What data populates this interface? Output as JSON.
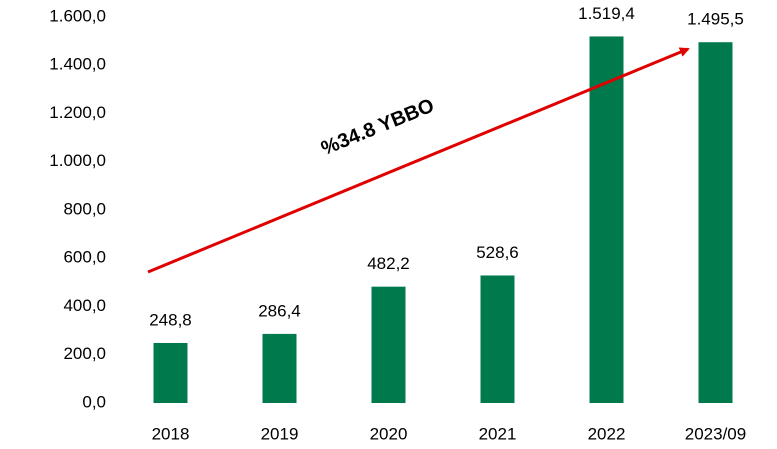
{
  "chart_data": {
    "type": "bar",
    "categories": [
      "2018",
      "2019",
      "2020",
      "2021",
      "2022",
      "2023/09"
    ],
    "values": [
      248.8,
      286.4,
      482.2,
      528.6,
      1519.4,
      1495.5
    ],
    "value_labels": [
      "248,8",
      "286,4",
      "482,2",
      "528,6",
      "1.519,4",
      "1.495,5"
    ],
    "color": "#007a4d",
    "ylim": [
      0,
      1600
    ],
    "yticks": [
      {
        "value": 0,
        "label": "0,0"
      },
      {
        "value": 200,
        "label": "200,0"
      },
      {
        "value": 400,
        "label": "400,0"
      },
      {
        "value": 600,
        "label": "600,0"
      },
      {
        "value": 800,
        "label": "800,0"
      },
      {
        "value": 1000,
        "label": "1.000,0"
      },
      {
        "value": 1200,
        "label": "1.200,0"
      },
      {
        "value": 1400,
        "label": "1.400,0"
      },
      {
        "value": 1600,
        "label": "1.600,0"
      }
    ],
    "annotation": "%34.8 YBBO",
    "grid": false
  }
}
